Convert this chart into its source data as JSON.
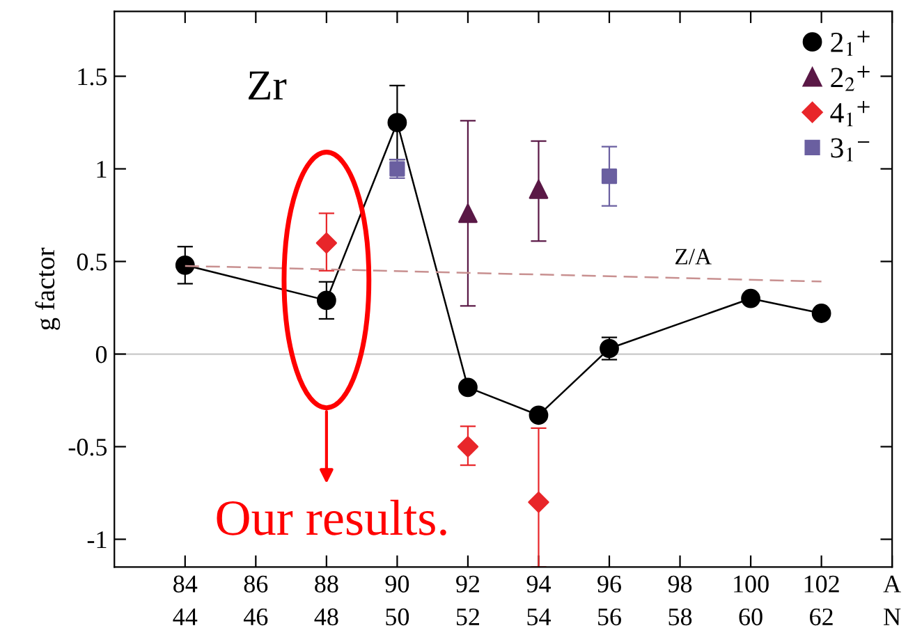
{
  "chart_data": {
    "type": "scatter",
    "ylabel": "g factor",
    "xlim": [
      82,
      104
    ],
    "ylim": [
      -1.15,
      1.85
    ],
    "xticks": [
      84,
      86,
      88,
      90,
      92,
      94,
      96,
      98,
      100,
      102,
      {
        "value": 104,
        "label": "A"
      }
    ],
    "x2lim": [
      42,
      64
    ],
    "x2ticks": [
      44,
      46,
      48,
      50,
      52,
      54,
      56,
      58,
      60,
      62,
      {
        "value": 64,
        "label": "N"
      }
    ],
    "yticks": [
      -1,
      -0.5,
      0,
      0.5,
      1,
      1.5
    ],
    "series": [
      {
        "name": "2$_{1}$$^{+}$",
        "type": "line",
        "marker": "circle",
        "color": "#000000",
        "x": [
          84,
          88,
          90,
          92,
          94,
          96,
          100,
          102
        ],
        "values": [
          0.48,
          0.29,
          1.25,
          -0.18,
          -0.33,
          0.03,
          0.3,
          0.22
        ],
        "errors": [
          0.1,
          0.1,
          0.2,
          null,
          null,
          0.06,
          null,
          null
        ]
      },
      {
        "name": "2$_{2}$$^{+}$",
        "marker": "triangle",
        "color": "#5a1846",
        "x": [
          92,
          94
        ],
        "values": [
          0.76,
          0.89
        ],
        "errors": [
          [
            0.26,
            1.26
          ],
          [
            0.61,
            1.15
          ]
        ]
      },
      {
        "name": "4$_{1}$$^{+}$",
        "marker": "diamond",
        "color": "#e8262a",
        "x": [
          88,
          92,
          94
        ],
        "values": [
          0.6,
          -0.5,
          -0.8
        ],
        "errors": [
          [
            0.45,
            0.76
          ],
          [
            -0.6,
            -0.39
          ],
          [
            -1.15,
            -0.4
          ]
        ]
      },
      {
        "name": "3$_{1}$$^{−}$",
        "marker": "square",
        "color": "#6a5fa0",
        "x": [
          90,
          96
        ],
        "values": [
          1.0,
          0.96
        ],
        "errors": [
          [
            0.95,
            1.05
          ],
          [
            0.8,
            1.12
          ]
        ]
      },
      {
        "type": "line",
        "marker": "none",
        "line_style": "dashed",
        "color": "#c89090",
        "x": [
          84,
          102
        ],
        "values": [
          0.476,
          0.392
        ]
      }
    ],
    "ref_lines": [
      {
        "axis": "y",
        "value": 0,
        "color": "#c8c8c8"
      }
    ],
    "annotations": [
      "Zr",
      "Z/A",
      "Our results."
    ],
    "legend": "top right"
  }
}
